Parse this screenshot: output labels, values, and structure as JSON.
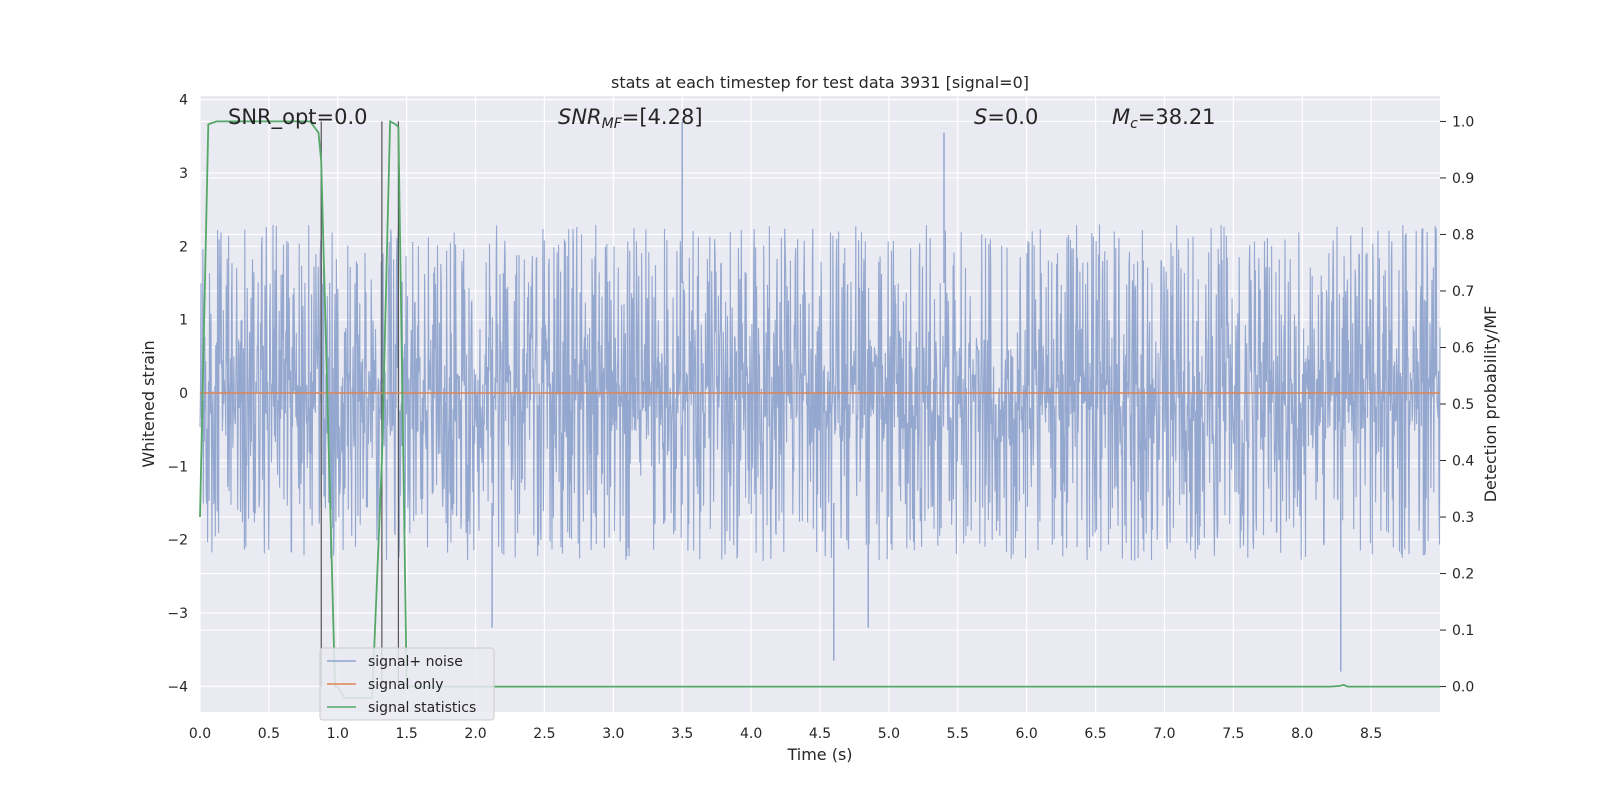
{
  "chart_data": {
    "type": "line",
    "title": "stats at each timestep for test data 3931 [signal=0]",
    "xlabel": "Time (s)",
    "ylabel_left": "Whitened strain",
    "ylabel_right": "Detection probability/MF",
    "xlim": [
      0.0,
      9.0
    ],
    "ylim_left": [
      -4.35,
      4.05
    ],
    "ylim_right": [
      -0.045,
      1.045
    ],
    "x_ticks": [
      0.0,
      0.5,
      1.0,
      1.5,
      2.0,
      2.5,
      3.0,
      3.5,
      4.0,
      4.5,
      5.0,
      5.5,
      6.0,
      6.5,
      7.0,
      7.5,
      8.0,
      8.5
    ],
    "x_tick_labels": [
      "0.0",
      "0.5",
      "1.0",
      "1.5",
      "2.0",
      "2.5",
      "3.0",
      "3.5",
      "4.0",
      "4.5",
      "5.0",
      "5.5",
      "6.0",
      "6.5",
      "7.0",
      "7.5",
      "8.0",
      "8.5"
    ],
    "y_left_ticks": [
      4,
      3,
      2,
      1,
      0,
      -1,
      -2,
      -3,
      -4
    ],
    "y_left_tick_labels": [
      "4",
      "3",
      "2",
      "1",
      "0",
      "−1",
      "−2",
      "−3",
      "−4"
    ],
    "y_right_ticks": [
      1.0,
      0.9,
      0.8,
      0.7,
      0.6,
      0.5,
      0.4,
      0.3,
      0.2,
      0.1,
      0.0
    ],
    "y_right_tick_labels": [
      "1.0",
      "0.9",
      "0.8",
      "0.7",
      "0.6",
      "0.5",
      "0.4",
      "0.3",
      "0.2",
      "0.1",
      "0.0"
    ],
    "grid": true,
    "legend_position": "lower-left",
    "annotations": {
      "snr_opt": "SNR_opt=0.0",
      "snr_mf_sym": "SNR",
      "snr_mf_sub": "MF",
      "snr_mf_val": "=[4.28]",
      "s_sym": "S",
      "s_val": "=0.0",
      "mc_sym": "M",
      "mc_sub": "c",
      "mc_val": "=38.21"
    },
    "series": [
      {
        "name": "signal+ noise",
        "color": "#8fa3cc",
        "axis": "left",
        "typical_range": [
          -2.0,
          2.0
        ],
        "extremes": [
          {
            "x": 0.88,
            "y": 3.1
          },
          {
            "x": 2.12,
            "y": -3.2
          },
          {
            "x": 3.5,
            "y": 3.7
          },
          {
            "x": 4.6,
            "y": -3.65
          },
          {
            "x": 4.85,
            "y": -3.2
          },
          {
            "x": 5.4,
            "y": 3.55
          },
          {
            "x": 8.28,
            "y": -3.8
          }
        ]
      },
      {
        "name": "signal only",
        "color": "#dd8452",
        "axis": "left",
        "values_constant": 0.0
      },
      {
        "name": "signal statistics",
        "color": "#55a868",
        "axis": "right",
        "x": [
          0.0,
          0.06,
          0.12,
          0.8,
          0.86,
          0.88,
          0.98,
          1.0,
          1.05,
          1.1,
          1.2,
          1.25,
          1.32,
          1.38,
          1.42,
          1.44,
          1.47,
          1.5,
          1.55,
          2.0,
          3.0,
          4.0,
          5.0,
          6.0,
          7.0,
          8.0,
          8.2,
          8.27,
          8.3,
          8.33,
          8.4,
          9.0
        ],
        "y": [
          0.3,
          0.995,
          1.0,
          1.0,
          0.98,
          0.93,
          0.0,
          0.0,
          -0.02,
          -0.02,
          -0.02,
          -0.02,
          0.4,
          1.0,
          0.995,
          0.99,
          0.5,
          0.0,
          0.0,
          0.0,
          0.0,
          0.0,
          0.0,
          0.0,
          0.0,
          0.0,
          0.0,
          0.001,
          0.003,
          0.0,
          0.0,
          0.0
        ]
      }
    ],
    "vertical_markers_x": [
      0.88,
      1.32,
      1.44
    ]
  }
}
